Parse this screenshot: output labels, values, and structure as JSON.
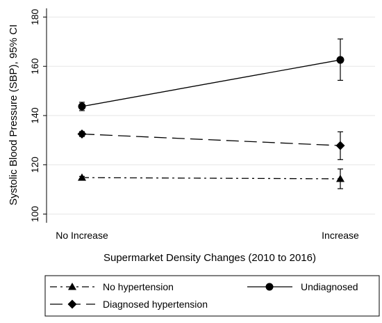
{
  "chart_data": {
    "type": "line",
    "xlabel": "Supermarket Density Changes (2010 to 2016)",
    "ylabel": "Systolic Blood Pressure (SBP), 95% CI",
    "categories": [
      "No Increase",
      "Increase"
    ],
    "ylim": [
      95,
      182
    ],
    "yticks": [
      100,
      120,
      140,
      160,
      180
    ],
    "grid": "horizontal",
    "legend_placement": "bottom",
    "series": [
      {
        "name": "No hypertension",
        "marker": "triangle",
        "dash": "dash-dot",
        "values": [
          114.8,
          114.3
        ],
        "ci_low": [
          114.3,
          110.3
        ],
        "ci_high": [
          115.3,
          118.3
        ]
      },
      {
        "name": "Undiagnosed",
        "marker": "circle",
        "dash": "solid",
        "values": [
          143.7,
          162.6
        ],
        "ci_low": [
          142.0,
          154.3
        ],
        "ci_high": [
          145.4,
          171.1
        ]
      },
      {
        "name": "Diagnosed hypertension",
        "marker": "diamond",
        "dash": "long-dash",
        "values": [
          132.5,
          127.8
        ],
        "ci_low": [
          131.5,
          122.1
        ],
        "ci_high": [
          133.5,
          133.4
        ]
      }
    ]
  }
}
